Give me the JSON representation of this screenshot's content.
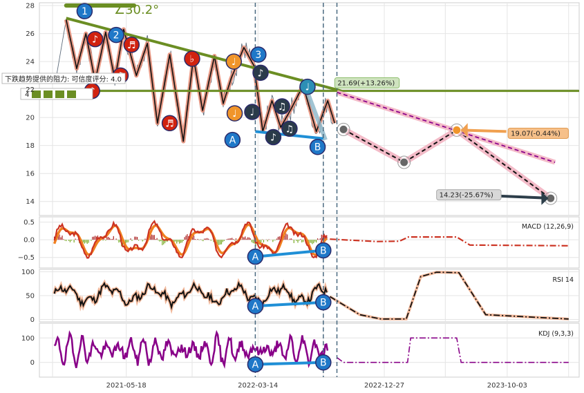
{
  "chart_data": [
    {
      "panel": "price",
      "type": "line",
      "ylim": [
        13,
        28.2
      ],
      "yticks": [
        14,
        16,
        18,
        20,
        22,
        24,
        26,
        28
      ],
      "angle_label": "∠30.2°",
      "resistance_tooltip": "下跌趋势提供的阻力: 可信度评分: 4.0",
      "resistance_score_digit": "4",
      "target_labels": [
        "21.69(+13.26%)",
        "19.07(-0.44%)",
        "14.23(-25.67%)"
      ],
      "wave_labels": [
        "1",
        "2",
        "3",
        "A",
        "B"
      ],
      "forecast": [
        {
          "date": "2022-09-25",
          "y": 19.15
        },
        {
          "date": "2023-02-10",
          "y": 16.8
        },
        {
          "date": "2023-06-10",
          "y": 19.1
        },
        {
          "date": "2024-01-10",
          "y": 14.23
        }
      ]
    },
    {
      "panel": "macd",
      "type": "line",
      "label": "MACD (12,26,9)",
      "ylim": [
        -0.8,
        0.65
      ],
      "yticks": [
        0.5,
        0.0,
        -0.5
      ],
      "ytick_labels": [
        "0.5",
        "0.0",
        "−0.5"
      ],
      "divergence_labels": [
        "A",
        "B"
      ]
    },
    {
      "panel": "rsi",
      "type": "line",
      "label": "RSI 14",
      "ylim": [
        -5,
        105
      ],
      "yticks": [
        100,
        50,
        0
      ],
      "divergence_labels": [
        "A",
        "B"
      ]
    },
    {
      "panel": "kdj",
      "type": "line",
      "label": "KDJ (9,3,3)",
      "ylim": [
        -60,
        160
      ],
      "yticks": [
        100,
        0
      ],
      "divergence_labels": [
        "A",
        "B"
      ]
    },
    {
      "panel": "x-axis",
      "xlim": [
        "2020-11-01",
        "2024-03-15"
      ],
      "xtick_labels": [
        "2021-05-18",
        "2022-03-14",
        "2022-12-27",
        "2023-10-03"
      ]
    }
  ],
  "colors": {
    "price": "#5d6b7a",
    "resistance": "#6b8e23",
    "wave_red": "#d1220f",
    "wave_blue": "#1f78c8",
    "wave_orange": "#f0952b",
    "wave_dark": "#2a3b4a",
    "wave_teal": "#2c8fb5",
    "forecast_pink": "#f2b4c2",
    "macd": "#cc3322",
    "signal": "#f08020",
    "rsi": "#111111",
    "kdj": "#880088",
    "divergence": "#1f8fd6"
  }
}
